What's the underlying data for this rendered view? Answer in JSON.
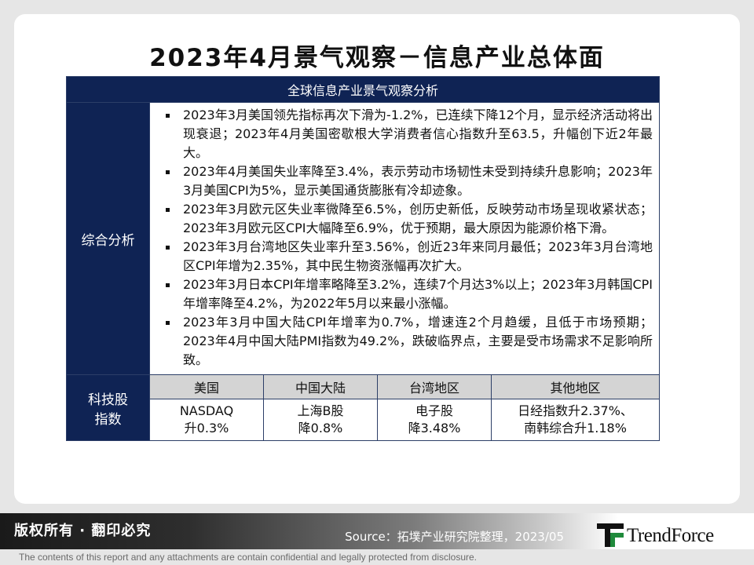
{
  "title": "2023年4月景气观察－信息产业总体面",
  "table": {
    "header": "全球信息产业景气观察分析",
    "analysis_label": "综合分析",
    "analysis_items": [
      "2023年3月美国领先指标再次下滑为-1.2%，已连续下降12个月，显示经济活动将出现衰退；2023年4月美国密歇根大学消费者信心指数升至63.5，升幅创下近2年最大。",
      "2023年4月美国失业率降至3.4%，表示劳动市场韧性未受到持续升息影响；2023年3月美国CPI为5%，显示美国通货膨胀有冷却迹象。",
      "2023年3月欧元区失业率微降至6.5%，创历史新低，反映劳动市场呈现收紧状态；2023年3月欧元区CPI大幅降至6.9%，优于预期，最大原因为能源价格下滑。",
      "2023年3月台湾地区失业率升至3.56%，创近23年来同月最低；2023年3月台湾地区CPI年增为2.35%，其中民生物资涨幅再次扩大。",
      "2023年3月日本CPI年增率略降至3.2%，连续7个月达3%以上；2023年3月韩国CPI年增率降至4.2%，为2022年5月以来最小涨幅。",
      "2023年3月中国大陆CPI年增率为0.7%，增速连2个月趋缓，且低于市场预期；2023年4月中国大陆PMI指数为49.2%，跌破临界点，主要是受市场需求不足影响所致。"
    ],
    "tech_label_line1": "科技股",
    "tech_label_line2": "指数",
    "regions": [
      "美国",
      "中国大陆",
      "台湾地区",
      "其他地区"
    ],
    "indices": [
      {
        "line1": "NASDAQ",
        "line2": "升0.3%"
      },
      {
        "line1": "上海B股",
        "line2": "降0.8%"
      },
      {
        "line1": "电子股",
        "line2": "降3.48%"
      },
      {
        "line1": "日经指数升2.37%、",
        "line2": "南韩综合升1.18%"
      }
    ]
  },
  "footer": {
    "rights": "版权所有 · 翻印必究",
    "source": "Source：拓墣产业研究院整理，2023/05",
    "logo_text": "TrendForce",
    "disclaimer": "The contents of this report and any attachments are contain confidential and legally protected from disclosure."
  },
  "colors": {
    "header_navy": "#0f2354",
    "subheader_gray": "#d4d4d4",
    "logo_green": "#1f8a3b"
  }
}
